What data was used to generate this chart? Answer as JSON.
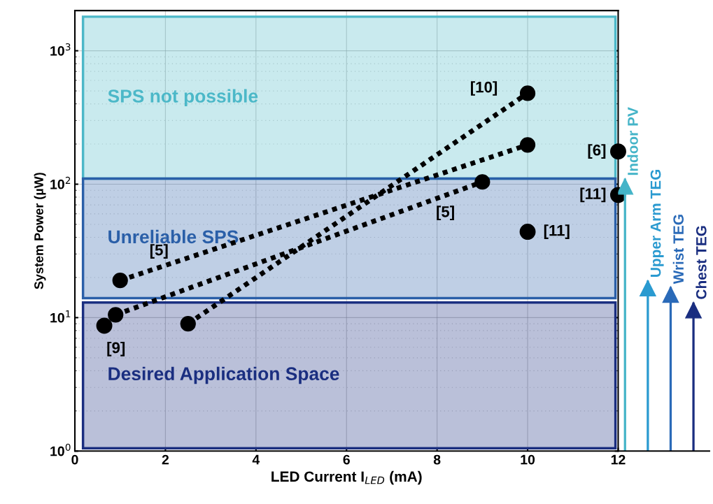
{
  "chart_data": [
    {
      "type": "scatter",
      "xlabel": "LED Current I$_{LED}$ (mA)",
      "ylabel": "System Power (µW)",
      "xlim": [
        0,
        12
      ],
      "xticks": [
        0,
        2,
        4,
        6,
        8,
        10,
        12
      ],
      "ylim": [
        1,
        2000
      ],
      "yticks": [
        {
          "value": 1,
          "label": "10$^{0}$"
        },
        {
          "value": 10,
          "label": "10$^{1}$"
        },
        {
          "value": 100,
          "label": "10$^{2}$"
        },
        {
          "value": 1000,
          "label": "10$^{3}$"
        }
      ],
      "log": "y",
      "grid": true,
      "marker": "circle",
      "series": [
        {
          "type": "line",
          "line_style": "dotted",
          "color": "#000000",
          "x": [
            2.5,
            10
          ],
          "values": [
            9,
            480
          ]
        },
        {
          "type": "line",
          "line_style": "dotted",
          "color": "#000000",
          "x": [
            1,
            10
          ],
          "values": [
            19,
            197
          ]
        },
        {
          "type": "line",
          "line_style": "dotted",
          "color": "#000000",
          "x": [
            0.9,
            9
          ],
          "values": [
            10.5,
            104
          ]
        },
        {
          "type": "scatter",
          "color": "#000000",
          "x": [
            0.65,
            12,
            12,
            10
          ],
          "values": [
            8.7,
            176,
            83,
            44
          ]
        }
      ],
      "bands": [
        {
          "axis": "y",
          "from": 110,
          "to": 1800,
          "label": "SPS not possible",
          "color": "#4cb8c8"
        },
        {
          "axis": "y",
          "from": 14,
          "to": 110,
          "label": "Unreliable SPS",
          "color": "#2a5fa8"
        },
        {
          "axis": "y",
          "from": 1.05,
          "to": 13,
          "label": "Desired Application Space",
          "color": "#1a2e80"
        }
      ],
      "annotations": [
        {
          "text": "[10]",
          "x": 10,
          "y": 480
        },
        {
          "text": "[5]",
          "x": 1,
          "y": 19
        },
        {
          "text": "[9]",
          "x": 0.65,
          "y": 8.7
        },
        {
          "text": "[5]",
          "x": 9,
          "y": 104
        },
        {
          "text": "[6]",
          "x": 12,
          "y": 176
        },
        {
          "text": "[11]",
          "x": 12,
          "y": 83
        },
        {
          "text": "[11]",
          "x": 10,
          "y": 44
        }
      ]
    },
    {
      "type": "bar",
      "categories": [
        "Indoor PV",
        "Upper Arm TEG",
        "Wrist TEG",
        "Chest TEG"
      ],
      "values": [
        110,
        19,
        17,
        13
      ],
      "colors": [
        "#44b4c8",
        "#2a9ad0",
        "#2a6ab8",
        "#1a2e80"
      ],
      "ylim": [
        1,
        2000
      ],
      "log": "y",
      "tick_labels": false
    }
  ]
}
